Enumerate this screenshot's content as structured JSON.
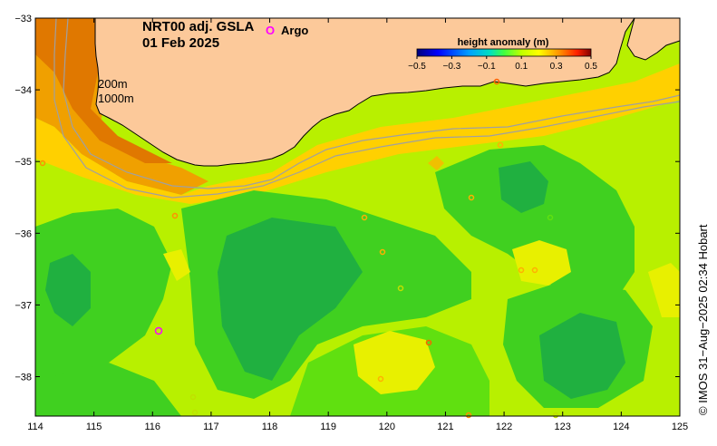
{
  "title": {
    "line1": "NRT00 adj. GSLA",
    "line2": "01 Feb 2025"
  },
  "legend": {
    "argo_label": "Argo",
    "argo_symbol": "O",
    "argo_color": "#ff00ff"
  },
  "isobaths": {
    "label_200": "200m",
    "label_1000": "1000m"
  },
  "colorbar": {
    "title": "height anomaly (m)",
    "ticks": [
      "−0.5",
      "−0.3",
      "−0.1",
      "0.1",
      "0.3",
      "0.5"
    ],
    "range": [
      -0.5,
      0.5
    ],
    "colors": [
      "#000080",
      "#0000ff",
      "#0080ff",
      "#00ffff",
      "#00ff80",
      "#80ff00",
      "#ffff00",
      "#ff8000",
      "#ff0000",
      "#800000"
    ]
  },
  "credit": "© IMOS 31−Aug−2025 02:34 Hobart",
  "axes": {
    "x_ticks": [
      "114",
      "115",
      "116",
      "117",
      "118",
      "119",
      "120",
      "121",
      "122",
      "123",
      "124",
      "125"
    ],
    "x_values": [
      114,
      115,
      116,
      117,
      118,
      119,
      120,
      121,
      122,
      123,
      124,
      125
    ],
    "y_ticks": [
      "−33",
      "−34",
      "−35",
      "−36",
      "−37",
      "−38"
    ],
    "y_values": [
      -33,
      -34,
      -35,
      -36,
      -37,
      -38
    ],
    "lon_range": [
      114,
      125
    ],
    "lat_range": [
      -38.55,
      -33
    ]
  },
  "colors": {
    "land": "#fcc99a",
    "coast": "#000000",
    "isobath": "#a0a0a0"
  }
}
